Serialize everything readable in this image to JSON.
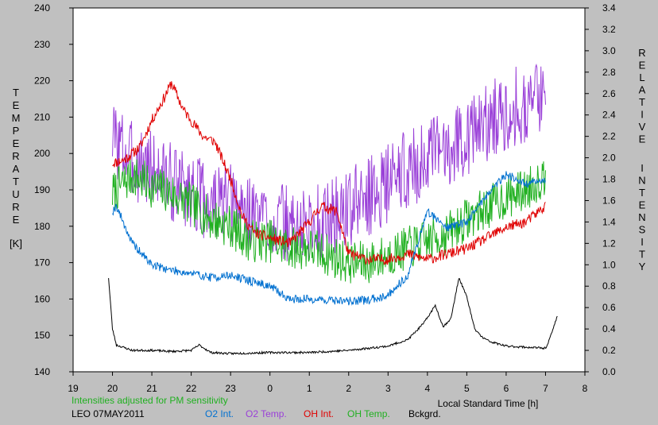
{
  "chart_data": {
    "type": "line",
    "xlabel": "Local Standard Time [h]",
    "ylabel_left": "TEMPERATURE",
    "ylabel_left_unit": "[K]",
    "ylabel_right": "RELATIVE INTENSITY",
    "xlim": [
      19,
      32
    ],
    "x_tick_labels": [
      "19",
      "20",
      "21",
      "22",
      "23",
      "0",
      "1",
      "2",
      "3",
      "4",
      "5",
      "6",
      "7",
      "8"
    ],
    "ylim_left": [
      140,
      240
    ],
    "ylim_right": [
      0.0,
      3.4
    ],
    "y_left_ticks": [
      140,
      150,
      160,
      170,
      180,
      190,
      200,
      210,
      220,
      230,
      240
    ],
    "y_right_ticks": [
      "0.0",
      "0.2",
      "0.4",
      "0.6",
      "0.8",
      "1.0",
      "1.2",
      "1.4",
      "1.6",
      "1.8",
      "2.0",
      "2.2",
      "2.4",
      "2.6",
      "2.8",
      "3.0",
      "3.2",
      "3.4"
    ],
    "grid": false,
    "note": "Intensities adjusted for PM sensitivity",
    "station_date": "LEO 07MAY2011",
    "legend": [
      {
        "name": "O2 Int.",
        "color": "#0070d0"
      },
      {
        "name": "O2 Temp.",
        "color": "#9a40d8"
      },
      {
        "name": "OH Int.",
        "color": "#e00000"
      },
      {
        "name": "OH Temp.",
        "color": "#20b020"
      },
      {
        "name": "Bckgrd.",
        "color": "#000000"
      }
    ],
    "series": [
      {
        "name": "O2 Temp.",
        "axis": "left",
        "color": "#9a40d8",
        "noise": 11,
        "seed": 3,
        "x": [
          20.0,
          20.5,
          21.0,
          21.5,
          22.0,
          22.5,
          23.0,
          23.5,
          24.0,
          24.5,
          25.0,
          25.5,
          26.0,
          26.5,
          27.0,
          27.5,
          28.0,
          28.5,
          29.0,
          29.5,
          30.0,
          30.5,
          31.0
        ],
        "values": [
          205,
          198,
          196,
          192,
          190,
          186,
          186,
          184,
          182,
          180,
          180,
          182,
          185,
          188,
          192,
          196,
          198,
          202,
          205,
          208,
          212,
          214,
          216
        ]
      },
      {
        "name": "OH Temp.",
        "axis": "left",
        "color": "#20b020",
        "noise": 6,
        "seed": 7,
        "x": [
          20.0,
          20.5,
          21.0,
          21.5,
          22.0,
          22.5,
          23.0,
          23.5,
          24.0,
          24.5,
          25.0,
          25.5,
          26.0,
          26.5,
          27.0,
          27.5,
          28.0,
          28.5,
          29.0,
          29.5,
          30.0,
          30.5,
          31.0
        ],
        "values": [
          189,
          194,
          191,
          189,
          186,
          182,
          180,
          176,
          176,
          174,
          174,
          172,
          170,
          170,
          172,
          174,
          176,
          178,
          182,
          185,
          188,
          190,
          194
        ]
      },
      {
        "name": "OH Int.",
        "axis": "right",
        "color": "#e00000",
        "noise": 0.05,
        "seed": 11,
        "x": [
          20.0,
          20.3,
          20.7,
          21.0,
          21.3,
          21.5,
          21.8,
          22.0,
          22.3,
          22.6,
          23.0,
          23.3,
          23.6,
          24.0,
          24.5,
          25.0,
          25.3,
          25.7,
          26.0,
          26.5,
          27.0,
          27.5,
          28.0,
          28.5,
          29.0,
          29.5,
          30.0,
          30.5,
          31.0
        ],
        "values": [
          1.95,
          1.98,
          2.1,
          2.35,
          2.55,
          2.7,
          2.45,
          2.35,
          2.2,
          2.15,
          1.8,
          1.45,
          1.3,
          1.25,
          1.2,
          1.4,
          1.55,
          1.5,
          1.1,
          1.05,
          1.05,
          1.1,
          1.05,
          1.1,
          1.15,
          1.25,
          1.35,
          1.4,
          1.55
        ]
      },
      {
        "name": "O2 Int.",
        "axis": "right",
        "color": "#0070d0",
        "noise": 0.04,
        "seed": 19,
        "x": [
          20.0,
          20.1,
          20.5,
          21.0,
          21.5,
          22.0,
          22.5,
          23.0,
          23.5,
          24.0,
          24.5,
          25.0,
          25.5,
          26.0,
          26.5,
          27.0,
          27.5,
          28.0,
          28.5,
          29.0,
          29.5,
          30.0,
          30.5,
          31.0
        ],
        "values": [
          1.5,
          1.55,
          1.2,
          1.0,
          0.95,
          0.92,
          0.88,
          0.9,
          0.85,
          0.8,
          0.68,
          0.68,
          0.67,
          0.66,
          0.67,
          0.72,
          0.9,
          1.5,
          1.35,
          1.4,
          1.65,
          1.85,
          1.75,
          1.8
        ]
      },
      {
        "name": "Bckgrd.",
        "axis": "right",
        "color": "#000000",
        "noise": 0.01,
        "seed": 23,
        "x": [
          19.9,
          20.0,
          20.1,
          20.5,
          21.0,
          21.5,
          22.0,
          22.2,
          22.5,
          23.0,
          24.0,
          25.0,
          26.0,
          27.0,
          27.5,
          27.9,
          28.2,
          28.4,
          28.6,
          28.8,
          29.0,
          29.2,
          29.4,
          29.6,
          30.0,
          30.5,
          31.0,
          31.1,
          31.3
        ],
        "values": [
          0.88,
          0.4,
          0.25,
          0.2,
          0.2,
          0.19,
          0.2,
          0.25,
          0.18,
          0.17,
          0.18,
          0.18,
          0.2,
          0.24,
          0.3,
          0.45,
          0.62,
          0.42,
          0.5,
          0.88,
          0.7,
          0.4,
          0.32,
          0.28,
          0.24,
          0.23,
          0.22,
          0.3,
          0.52
        ]
      }
    ]
  }
}
